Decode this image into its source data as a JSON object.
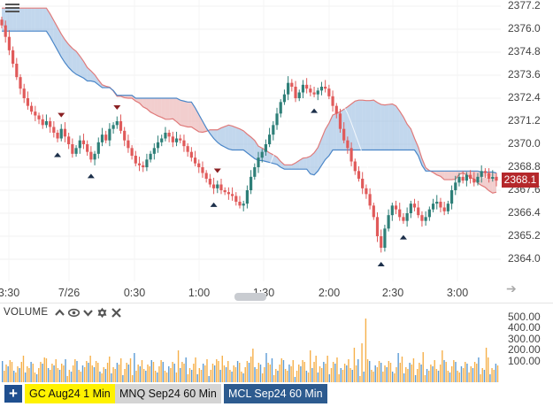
{
  "menu": {
    "icon": "hamburger-menu-icon"
  },
  "price_axis": {
    "ticks": [
      "2377.2",
      "2376.0",
      "2374.8",
      "2373.6",
      "2372.4",
      "2371.2",
      "2370.0",
      "2368.8",
      "2367.6",
      "2366.4",
      "2365.2",
      "2364.0"
    ]
  },
  "last_price": {
    "label": "2368.1",
    "value": 2368.1,
    "color": "#b5282b"
  },
  "time_axis": {
    "ticks": [
      "3:30",
      "7/26",
      "0:30",
      "1:00",
      "1:30",
      "2:00",
      "2:30",
      "3:00"
    ]
  },
  "volume_panel": {
    "title": "VOLUME",
    "icons": [
      "chevron-up-icon",
      "eye-icon",
      "chevron-down-icon",
      "gear-icon",
      "close-icon"
    ],
    "axis_ticks": [
      "500.00",
      "400.00",
      "300.00",
      "200.00",
      "100.00"
    ]
  },
  "colors": {
    "up": "#2e7f78",
    "down": "#e05a5a",
    "cloud_bear": "#e8a6a6",
    "cloud_bull": "#8fb7de",
    "vol_up": "#f6b04a",
    "vol_down": "#5b9bd5",
    "axis_text": "#444444"
  },
  "footer": {
    "add_icon": "plus-icon",
    "tabs": [
      {
        "label": "GC Aug24 1 Min",
        "bg": "#fff200",
        "fg": "#111111"
      },
      {
        "label": "MNQ Sep24 60 Min",
        "bg": "#d4d4d4",
        "fg": "#111111"
      },
      {
        "label": "MCL Sep24 60 Min",
        "bg": "#2d5b8f",
        "fg": "#ffffff"
      }
    ]
  },
  "scroll": {
    "right_icon": "arrow-right-icon"
  },
  "chart_data": {
    "type": "candlestick",
    "title": "",
    "ylim": [
      2363.4,
      2377.4
    ],
    "x_ticks": [
      "3:30",
      "7/26",
      "0:30",
      "1:00",
      "1:30",
      "2:00",
      "2:30",
      "3:00"
    ],
    "close": [
      2376.2,
      2375.6,
      2374.9,
      2374.2,
      2373.5,
      2372.9,
      2372.4,
      2372.0,
      2371.7,
      2371.5,
      2371.3,
      2371.0,
      2371.2,
      2370.9,
      2370.6,
      2370.3,
      2370.8,
      2370.4,
      2370.0,
      2369.5,
      2369.8,
      2370.2,
      2370.0,
      2369.6,
      2369.2,
      2369.5,
      2370.1,
      2370.5,
      2370.2,
      2370.8,
      2371.0,
      2371.2,
      2370.7,
      2370.2,
      2369.8,
      2369.4,
      2369.0,
      2368.9,
      2368.8,
      2369.2,
      2369.5,
      2369.8,
      2370.1,
      2370.3,
      2370.6,
      2370.4,
      2370.1,
      2370.3,
      2370.2,
      2369.9,
      2369.6,
      2369.3,
      2369.0,
      2368.8,
      2368.5,
      2368.2,
      2367.9,
      2367.7,
      2367.9,
      2367.6,
      2367.5,
      2367.4,
      2367.3,
      2367.0,
      2366.8,
      2366.9,
      2367.6,
      2368.3,
      2368.8,
      2369.3,
      2369.6,
      2370.0,
      2370.5,
      2371.0,
      2371.6,
      2372.2,
      2372.6,
      2373.2,
      2373.0,
      2372.4,
      2372.7,
      2373.1,
      2372.9,
      2372.7,
      2372.6,
      2372.8,
      2373.0,
      2372.9,
      2372.5,
      2372.0,
      2371.6,
      2370.8,
      2370.2,
      2369.8,
      2369.1,
      2368.6,
      2368.2,
      2367.7,
      2367.4,
      2366.8,
      2366.2,
      2365.2,
      2364.6,
      2365.6,
      2366.3,
      2366.8,
      2366.6,
      2366.2,
      2366.0,
      2366.4,
      2366.9,
      2366.7,
      2366.3,
      2366.0,
      2366.2,
      2366.6,
      2366.9,
      2367.0,
      2366.7,
      2366.5,
      2366.9,
      2367.6,
      2368.0,
      2368.3,
      2368.1,
      2368.4,
      2368.2,
      2368.0,
      2368.3,
      2368.6,
      2368.5,
      2368.2,
      2368.3,
      2368.1
    ]
  }
}
